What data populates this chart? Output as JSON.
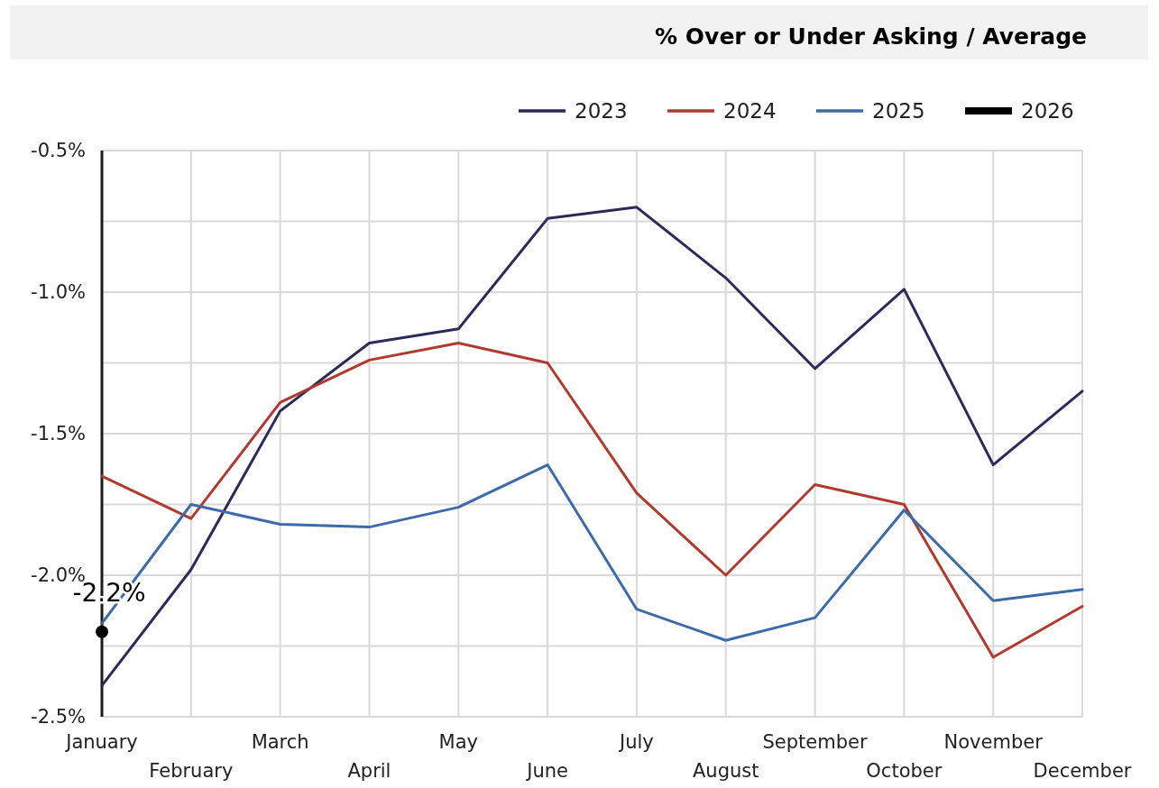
{
  "chart_data": {
    "type": "line",
    "title": "% Over or Under Asking / Average",
    "categories": [
      "January",
      "February",
      "March",
      "April",
      "May",
      "June",
      "July",
      "August",
      "September",
      "October",
      "November",
      "December"
    ],
    "series": [
      {
        "name": "2023",
        "color": "#2b2a5a",
        "values": [
          -2.39,
          -1.98,
          -1.42,
          -1.18,
          -1.13,
          -0.74,
          -0.7,
          -0.95,
          -1.27,
          -0.99,
          -1.61,
          -1.35
        ]
      },
      {
        "name": "2024",
        "color": "#b03a2e",
        "values": [
          -1.65,
          -1.8,
          -1.39,
          -1.24,
          -1.18,
          -1.25,
          -1.71,
          -2.0,
          -1.68,
          -1.75,
          -2.29,
          -2.11
        ]
      },
      {
        "name": "2025",
        "color": "#3d6aa8",
        "values": [
          -2.17,
          -1.75,
          -1.82,
          -1.83,
          -1.76,
          -1.61,
          -2.12,
          -2.23,
          -2.15,
          -1.77,
          -2.09,
          -2.05
        ]
      },
      {
        "name": "2026",
        "color": "#000000",
        "marker": "circle",
        "values": [
          -2.2,
          null,
          null,
          null,
          null,
          null,
          null,
          null,
          null,
          null,
          null,
          null
        ],
        "value_labels": [
          "-2.2%",
          null,
          null,
          null,
          null,
          null,
          null,
          null,
          null,
          null,
          null,
          null
        ]
      }
    ],
    "ylim": [
      -2.5,
      -0.5
    ],
    "yticks": [
      {
        "value": -2.5,
        "label": "-2.5%"
      },
      {
        "value": -2.25,
        "label": null
      },
      {
        "value": -2.0,
        "label": "-2.0%"
      },
      {
        "value": -1.75,
        "label": null
      },
      {
        "value": -1.5,
        "label": "-1.5%"
      },
      {
        "value": -1.25,
        "label": null
      },
      {
        "value": -1.0,
        "label": "-1.0%"
      },
      {
        "value": -0.75,
        "label": null
      },
      {
        "value": -0.5,
        "label": "-0.5%"
      }
    ],
    "grid": true,
    "legend": "top right"
  }
}
